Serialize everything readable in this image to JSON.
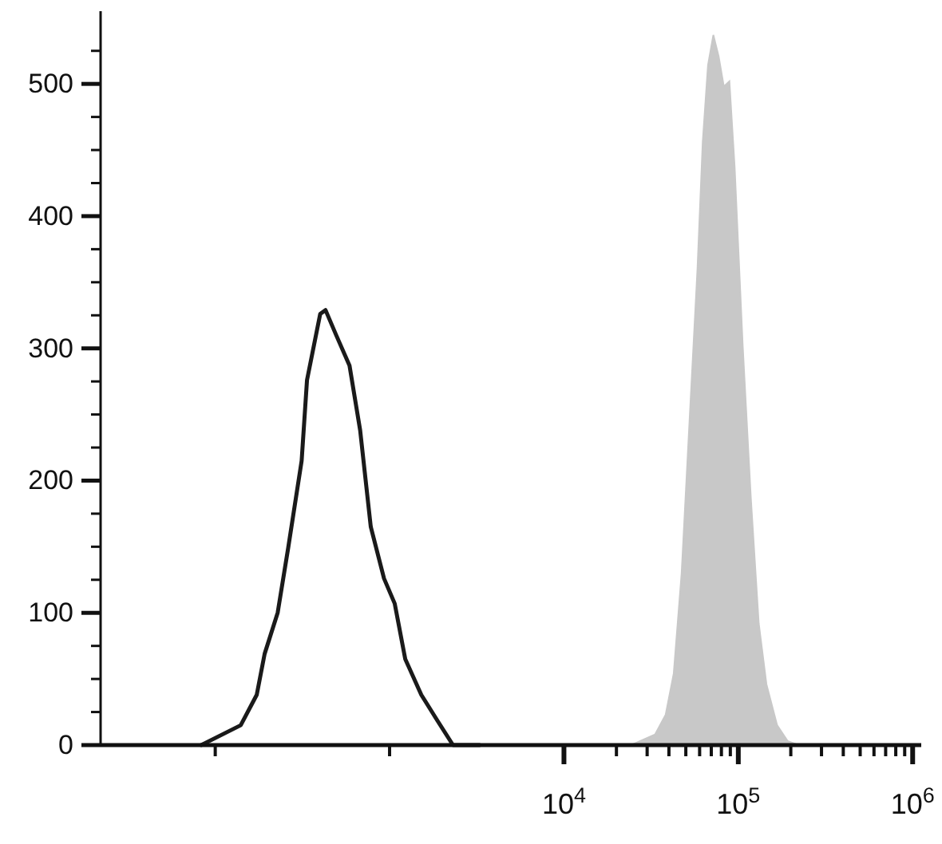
{
  "chart_data": {
    "type": "line",
    "log": "x",
    "xlim": [
      22,
      1120000
    ],
    "ylim": [
      0,
      555
    ],
    "xticks": [
      {
        "value": 100,
        "label": null
      },
      {
        "value": 1000,
        "label": null
      },
      {
        "value": 10000,
        "label": "10$^{4}$"
      },
      {
        "value": 20000,
        "label": null
      },
      {
        "value": 30000,
        "label": null
      },
      {
        "value": 40000,
        "label": null
      },
      {
        "value": 50000,
        "label": null
      },
      {
        "value": 60000,
        "label": null
      },
      {
        "value": 70000,
        "label": null
      },
      {
        "value": 80000,
        "label": null
      },
      {
        "value": 90000,
        "label": null
      },
      {
        "value": 100000,
        "label": "10$^{5}$"
      },
      {
        "value": 200000,
        "label": null
      },
      {
        "value": 300000,
        "label": null
      },
      {
        "value": 400000,
        "label": null
      },
      {
        "value": 500000,
        "label": null
      },
      {
        "value": 600000,
        "label": null
      },
      {
        "value": 700000,
        "label": null
      },
      {
        "value": 800000,
        "label": null
      },
      {
        "value": 900000,
        "label": null
      },
      {
        "value": 1000000,
        "label": "10$^{6}$"
      }
    ],
    "yticks": [
      0,
      {
        "value": 25,
        "label": null
      },
      {
        "value": 50,
        "label": null
      },
      {
        "value": 75,
        "label": null
      },
      100,
      {
        "value": 125,
        "label": null
      },
      {
        "value": 150,
        "label": null
      },
      {
        "value": 175,
        "label": null
      },
      200,
      {
        "value": 225,
        "label": null
      },
      {
        "value": 250,
        "label": null
      },
      {
        "value": 275,
        "label": null
      },
      300,
      {
        "value": 325,
        "label": null
      },
      {
        "value": 350,
        "label": null
      },
      {
        "value": 375,
        "label": null
      },
      400,
      {
        "value": 425,
        "label": null
      },
      {
        "value": 450,
        "label": null
      },
      {
        "value": 475,
        "label": null
      },
      500,
      {
        "value": 525,
        "label": null
      }
    ],
    "series": [
      {
        "type": "area",
        "color": "#c8c8c8",
        "x": [
          24300,
          33300,
          38300,
          42600,
          47300,
          52500,
          58300,
          62500,
          67000,
          71900,
          77100,
          82600,
          88900,
          95300,
          106000,
          118000,
          131000,
          145000,
          167000,
          192000,
          221000
        ],
        "values": [
          0,
          8,
          23,
          54,
          130,
          245,
          360,
          456,
          514,
          537,
          521,
          498,
          502,
          437,
          302,
          187,
          92,
          46,
          15,
          3,
          0
        ]
      },
      {
        "color": "#1a1a1a",
        "x": [
          83,
          140,
          173,
          192,
          228,
          262,
          313,
          336,
          400,
          429,
          494,
          589,
          678,
          780,
          929,
          1070,
          1230,
          1520,
          1870,
          2310,
          3280
        ],
        "values": [
          0,
          15,
          38,
          69,
          100,
          149,
          215,
          276,
          326,
          329,
          310,
          287,
          238,
          165,
          126,
          107,
          65,
          38,
          19,
          0,
          0
        ]
      }
    ]
  }
}
